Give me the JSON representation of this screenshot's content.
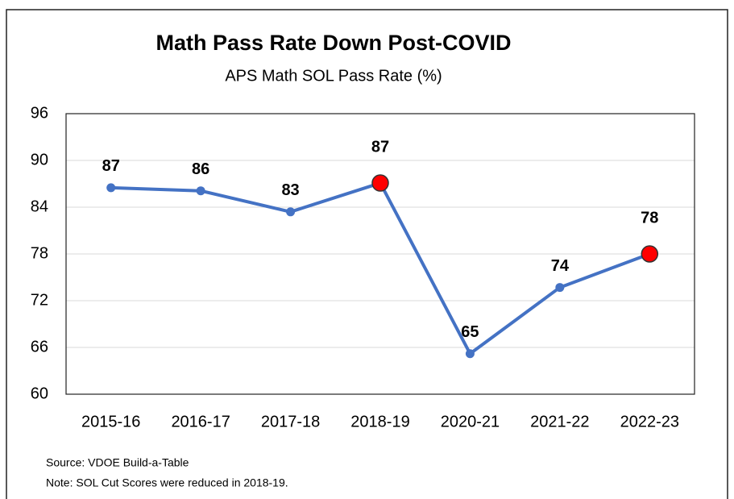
{
  "chart_data": {
    "type": "line",
    "title": "Math Pass Rate Down Post-COVID",
    "subtitle": "APS Math SOL Pass Rate (%)",
    "categories": [
      "2015-16",
      "2016-17",
      "2017-18",
      "2018-19",
      "2020-21",
      "2021-22",
      "2022-23"
    ],
    "series": [
      {
        "name": "APS Math SOL Pass Rate",
        "color": "#4472c4",
        "values": [
          86.5,
          86.1,
          83.4,
          87.1,
          65.2,
          73.7,
          78.0
        ],
        "value_labels": [
          "87",
          "86",
          "83",
          "87",
          "65",
          "74",
          "78"
        ],
        "marker_colors": [
          "#4472c4",
          "#4472c4",
          "#4472c4",
          "#ff0000",
          "#4472c4",
          "#4472c4",
          "#ff0000"
        ]
      }
    ],
    "ylim": [
      60,
      96
    ],
    "yticks": [
      60,
      66,
      72,
      78,
      84,
      90,
      96
    ],
    "grid": true,
    "notes": [
      "Source: VDOE Build-a-Table",
      "Note: SOL Cut Scores were reduced in 2018-19."
    ]
  }
}
